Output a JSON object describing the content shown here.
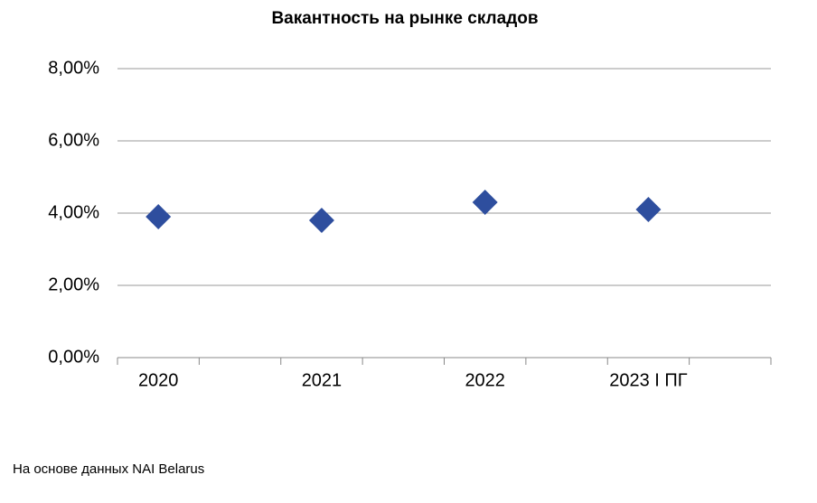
{
  "chart_data": {
    "type": "scatter",
    "title": "Вакантность на рынке складов",
    "categories": [
      "2020",
      "2021",
      "2022",
      "2023 I ПГ"
    ],
    "values": [
      3.9,
      3.8,
      4.3,
      4.1
    ],
    "color": "#2e4e9e",
    "marker": "diamond",
    "ylim": [
      0,
      8
    ],
    "yticks": [
      {
        "value": 0,
        "label": "0,00%"
      },
      {
        "value": 2,
        "label": "2,00%"
      },
      {
        "value": 4,
        "label": "4,00%"
      },
      {
        "value": 6,
        "label": "6,00%"
      },
      {
        "value": 8,
        "label": "8,00%"
      }
    ],
    "grid": true,
    "source": "На основе данных NAI Belarus"
  }
}
